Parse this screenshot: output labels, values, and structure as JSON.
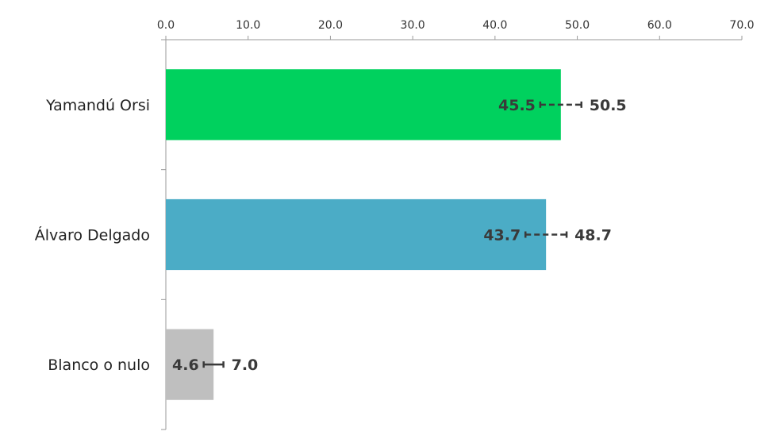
{
  "chart_data": {
    "type": "bar",
    "orientation": "horizontal",
    "xlim": [
      0,
      70
    ],
    "xticks": [
      "0.0",
      "10.0",
      "20.0",
      "30.0",
      "40.0",
      "50.0",
      "60.0",
      "70.0"
    ],
    "categories": [
      "Yamandú Orsi",
      "Álvaro Delgado",
      "Blanco o nulo"
    ],
    "values": [
      48.0,
      46.2,
      5.8
    ],
    "ranges": [
      {
        "low": "45.5",
        "high": "50.5"
      },
      {
        "low": "43.7",
        "high": "48.7"
      },
      {
        "low": "4.6",
        "high": "7.0"
      }
    ],
    "colors": [
      "#00d15e",
      "#4bacc6",
      "#bfbfbf"
    ],
    "grid": false,
    "legend": "none",
    "axis_position": "top"
  }
}
